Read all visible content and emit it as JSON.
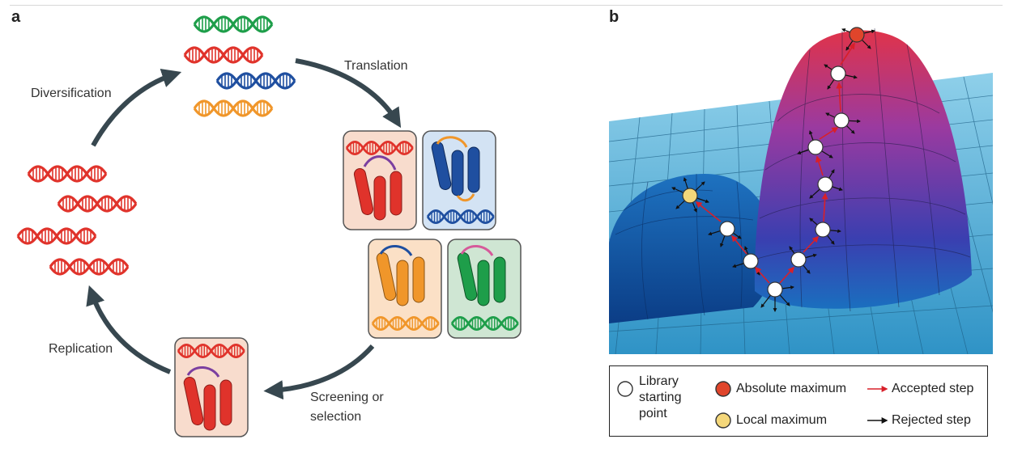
{
  "panel_a": {
    "label": "a",
    "steps": {
      "diversification": "Diversification",
      "translation": "Translation",
      "screening_line1": "Screening or",
      "screening_line2": "selection",
      "replication": "Replication"
    }
  },
  "panel_b": {
    "label": "b",
    "legend": {
      "library_line1": "Library",
      "library_line2": "starting",
      "library_line3": "point",
      "absolute_maximum": "Absolute maximum",
      "local_maximum": "Local maximum",
      "accepted_step": "Accepted step",
      "rejected_step": "Rejected step"
    }
  },
  "colors": {
    "red": "#e0332b",
    "green": "#1e9e4a",
    "blue": "#1f4fa0",
    "orange": "#f0962a",
    "arrow": "#37474f",
    "landscape_blue": "#3aa7d6",
    "peak_red": "#d9324a",
    "peak_purple": "#7a3aa0",
    "absolute_max_marker": "#e0452b",
    "local_max_marker": "#f4d77a"
  }
}
